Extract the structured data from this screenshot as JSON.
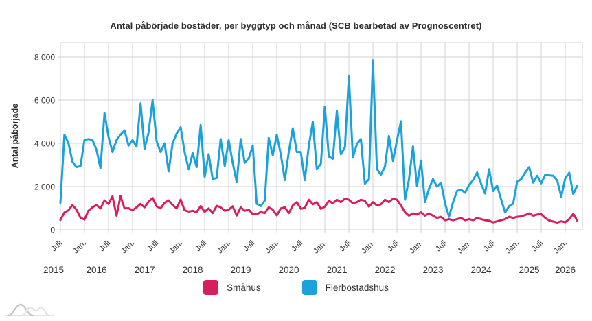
{
  "chart_data": {
    "type": "line",
    "title": "Antal påbörjade bostäder, per byggtyp och månad (SCB bearbetad av Prognoscentret)",
    "ylabel": "Antal påbörjade",
    "ylim": [
      0,
      8000
    ],
    "grid": true,
    "legend_position": "bottom",
    "x_unit": "month",
    "x_range": "Juli 2015 – April 2026",
    "x_tick_labels": [
      "Juli",
      "Jan.",
      "Juli",
      "Jan.",
      "Juli",
      "Jan.",
      "Juli",
      "Jan.",
      "Juli",
      "Jan.",
      "Juli",
      "Jan.",
      "Juli",
      "Jan.",
      "Juli",
      "Jan.",
      "Juli",
      "Jan.",
      "Juli",
      "Jan.",
      "Juli",
      "Jan."
    ],
    "year_labels": [
      "2015",
      "2016",
      "2017",
      "2018",
      "2019",
      "2020",
      "2021",
      "2022",
      "2023",
      "2024",
      "2025",
      "2026"
    ],
    "y_tick_values": [
      0,
      2000,
      4000,
      6000,
      8000
    ],
    "y_tick_labels": [
      "0",
      "2 000",
      "4 000",
      "6 000",
      "8 000"
    ],
    "series": [
      {
        "name": "Småhus",
        "color": "#d81e5b",
        "values": [
          450,
          800,
          900,
          1150,
          930,
          560,
          470,
          880,
          1040,
          1150,
          990,
          1360,
          1200,
          1550,
          650,
          1560,
          990,
          1000,
          900,
          1040,
          1200,
          1040,
          1300,
          1470,
          1090,
          990,
          1250,
          1360,
          1150,
          990,
          1400,
          900,
          840,
          880,
          820,
          1100,
          830,
          990,
          770,
          1110,
          1040,
          880,
          930,
          1090,
          660,
          1040,
          880,
          930,
          715,
          715,
          825,
          770,
          1040,
          930,
          660,
          990,
          1040,
          770,
          1130,
          1280,
          970,
          1020,
          1390,
          1180,
          1280,
          970,
          1070,
          1340,
          1230,
          1390,
          1280,
          1440,
          1390,
          1230,
          1280,
          1390,
          1340,
          1070,
          1280,
          1130,
          1180,
          1390,
          1280,
          1440,
          1390,
          1130,
          810,
          650,
          760,
          705,
          810,
          650,
          760,
          650,
          550,
          600,
          440,
          495,
          440,
          495,
          550,
          440,
          495,
          440,
          550,
          495,
          440,
          420,
          340,
          390,
          440,
          495,
          600,
          550,
          600,
          620,
          680,
          760,
          650,
          705,
          720,
          550,
          430,
          380,
          330,
          390,
          350,
          500,
          740,
          420
        ]
      },
      {
        "name": "Flerbostadshus",
        "color": "#1ba1dc",
        "values": [
          1250,
          4400,
          4000,
          3150,
          2900,
          2950,
          4150,
          4200,
          4150,
          3700,
          2850,
          5400,
          4300,
          3600,
          4150,
          4400,
          4600,
          3900,
          4150,
          3850,
          5850,
          3750,
          4500,
          6000,
          4100,
          3600,
          4000,
          2700,
          4000,
          4450,
          4750,
          3600,
          2800,
          3550,
          2900,
          4850,
          2450,
          3500,
          2350,
          2400,
          4200,
          2950,
          4150,
          3100,
          2200,
          4200,
          3100,
          3300,
          3900,
          1200,
          1100,
          1350,
          4250,
          3450,
          4400,
          3500,
          2300,
          3600,
          4700,
          3600,
          3600,
          2300,
          3900,
          5000,
          2800,
          3050,
          5700,
          3390,
          3290,
          5500,
          3500,
          3810,
          7100,
          3340,
          3970,
          4200,
          2130,
          2340,
          7850,
          2810,
          2550,
          2920,
          4340,
          3180,
          4130,
          5020,
          1390,
          2340,
          3860,
          2020,
          3200,
          1280,
          1900,
          2350,
          2000,
          2180,
          1230,
          600,
          1280,
          1800,
          1860,
          1710,
          2070,
          2300,
          2650,
          2130,
          1680,
          2800,
          1790,
          2050,
          1400,
          800,
          1100,
          1210,
          2230,
          2340,
          2650,
          2900,
          2180,
          2500,
          2150,
          2540,
          2520,
          2500,
          2280,
          1530,
          2380,
          2640,
          1650,
          2050
        ]
      }
    ]
  }
}
